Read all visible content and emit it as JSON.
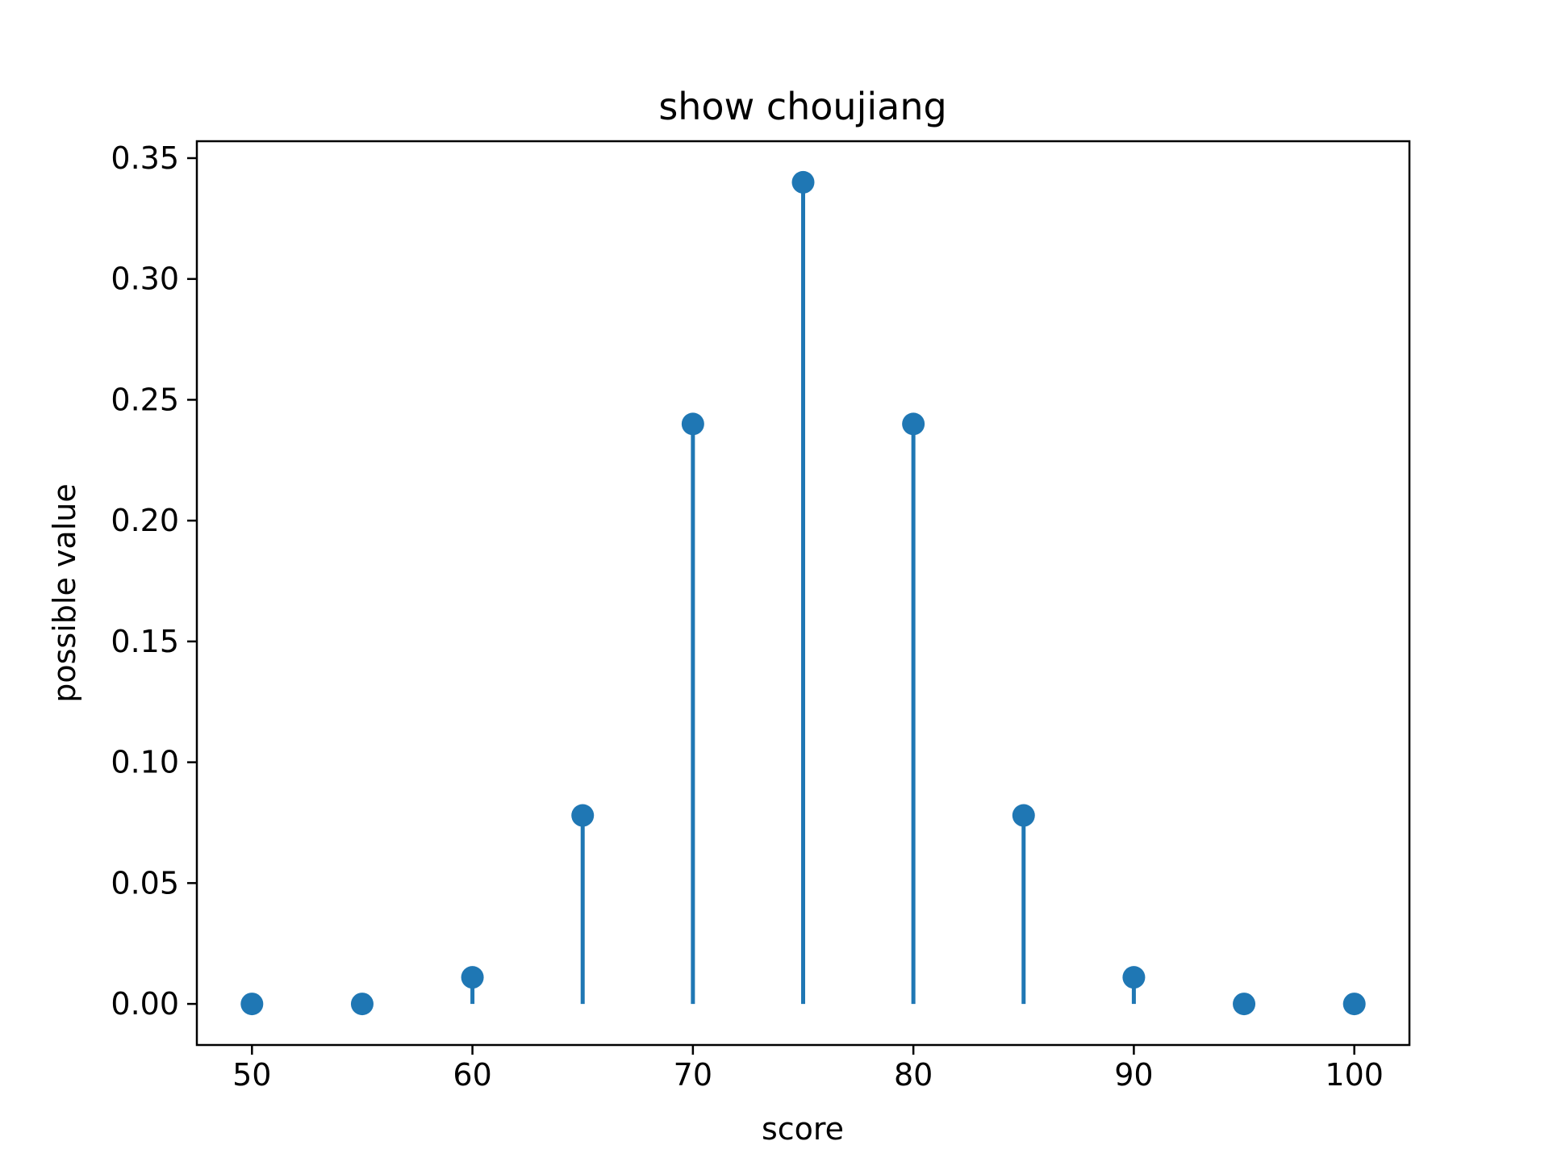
{
  "chart_data": {
    "type": "stem",
    "title": "show choujiang",
    "xlabel": "score",
    "ylabel": "possible value",
    "x": [
      50,
      55,
      60,
      65,
      70,
      75,
      80,
      85,
      90,
      95,
      100
    ],
    "y": [
      1e-07,
      1e-06,
      0.011,
      0.078,
      0.24,
      0.34,
      0.24,
      0.078,
      0.011,
      1e-06,
      1e-07
    ],
    "xlim": [
      47.5,
      102.5
    ],
    "ylim": [
      -0.017,
      0.357
    ],
    "xticks": [
      50,
      60,
      70,
      80,
      90,
      100
    ],
    "xtick_labels": [
      "50",
      "60",
      "70",
      "80",
      "90",
      "100"
    ],
    "yticks": [
      0.0,
      0.05,
      0.1,
      0.15,
      0.2,
      0.25,
      0.3,
      0.35
    ],
    "ytick_labels": [
      "0.00",
      "0.05",
      "0.10",
      "0.15",
      "0.20",
      "0.25",
      "0.30",
      "0.35"
    ],
    "grid": false,
    "color": "#1f77b4"
  }
}
